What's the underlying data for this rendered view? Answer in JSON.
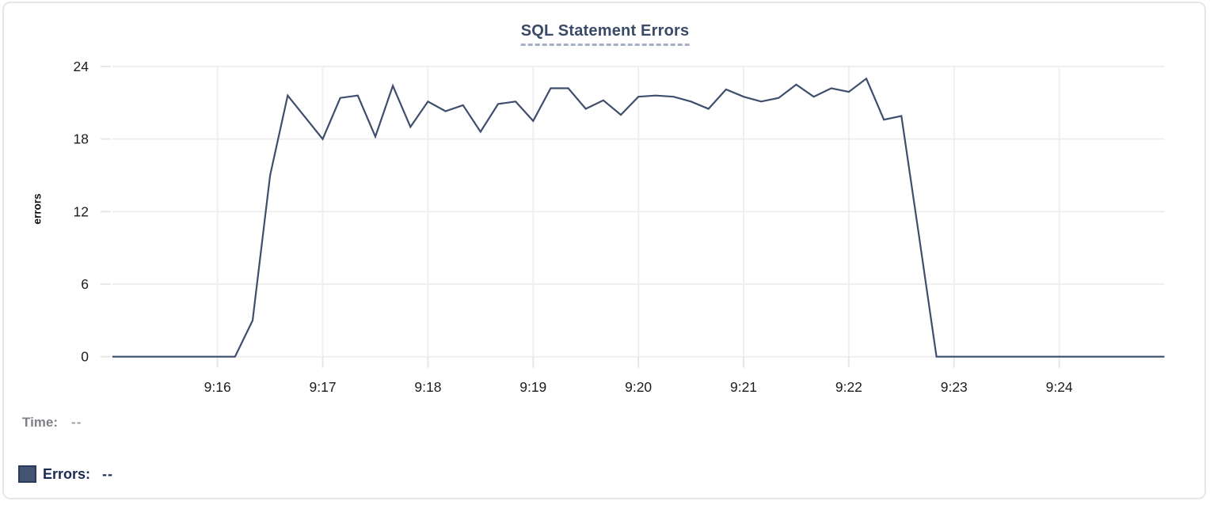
{
  "card": {
    "background": "#ffffff",
    "border_color": "#e7e7e7"
  },
  "chart_data": {
    "type": "line",
    "title": "SQL Statement Errors",
    "xlabel": "",
    "ylabel": "errors",
    "x_tick_labels": [
      "9:16",
      "9:17",
      "9:18",
      "9:19",
      "9:20",
      "9:21",
      "9:22",
      "9:23",
      "9:24"
    ],
    "y_tick_labels": [
      "0",
      "6",
      "12",
      "18",
      "24"
    ],
    "y_ticks": [
      0,
      6,
      12,
      18,
      24
    ],
    "ylim": [
      0,
      24
    ],
    "x_start": "9:15:00",
    "x_end": "9:25:00",
    "x_step_seconds": 10,
    "grid": true,
    "legend_position": "bottom",
    "series": [
      {
        "name": "Errors",
        "color": "#3e4e6c",
        "times": [
          "9:15:00",
          "9:15:10",
          "9:15:20",
          "9:15:30",
          "9:15:40",
          "9:15:50",
          "9:16:00",
          "9:16:10",
          "9:16:20",
          "9:16:30",
          "9:16:40",
          "9:16:50",
          "9:17:00",
          "9:17:10",
          "9:17:20",
          "9:17:30",
          "9:17:40",
          "9:17:50",
          "9:18:00",
          "9:18:10",
          "9:18:20",
          "9:18:30",
          "9:18:40",
          "9:18:50",
          "9:19:00",
          "9:19:10",
          "9:19:20",
          "9:19:30",
          "9:19:40",
          "9:19:50",
          "9:20:00",
          "9:20:10",
          "9:20:20",
          "9:20:30",
          "9:20:40",
          "9:20:50",
          "9:21:00",
          "9:21:10",
          "9:21:20",
          "9:21:30",
          "9:21:40",
          "9:21:50",
          "9:22:00",
          "9:22:10",
          "9:22:20",
          "9:22:30",
          "9:22:40",
          "9:22:50",
          "9:23:00",
          "9:23:10",
          "9:23:20",
          "9:23:30",
          "9:23:40",
          "9:23:50",
          "9:24:00",
          "9:24:10",
          "9:24:20",
          "9:24:30",
          "9:24:40",
          "9:24:50",
          "9:25:00"
        ],
        "values": [
          0,
          0,
          0,
          0,
          0,
          0,
          0,
          0,
          3,
          15,
          21.6,
          19.8,
          18,
          21.4,
          21.6,
          18.2,
          22.4,
          19,
          21.1,
          20.3,
          20.8,
          18.6,
          20.9,
          21.1,
          19.5,
          22.2,
          22.2,
          20.5,
          21.2,
          20,
          21.5,
          21.6,
          21.5,
          21.1,
          20.5,
          22.1,
          21.5,
          21.1,
          21.4,
          22.5,
          21.5,
          22.2,
          21.9,
          23,
          19.6,
          19.9,
          10,
          0,
          0,
          0,
          0,
          0,
          0,
          0,
          0,
          0,
          0,
          0,
          0,
          0,
          0
        ]
      }
    ]
  },
  "tooltip": {
    "time_label": "Time:",
    "time_value": "--",
    "errors_label": "Errors:",
    "errors_value": "--"
  },
  "colors": {
    "line": "#3e4e6c",
    "grid": "#efefef",
    "tick": "#e7e7e7",
    "axis_text": "#1c1c1e",
    "title_text": "#3a4a68",
    "title_dash": "#a6b0c4",
    "time_label": "#7d8186",
    "errors_label": "#1a2a52",
    "swatch_fill": "#445571",
    "swatch_border": "#2b3a5a"
  }
}
